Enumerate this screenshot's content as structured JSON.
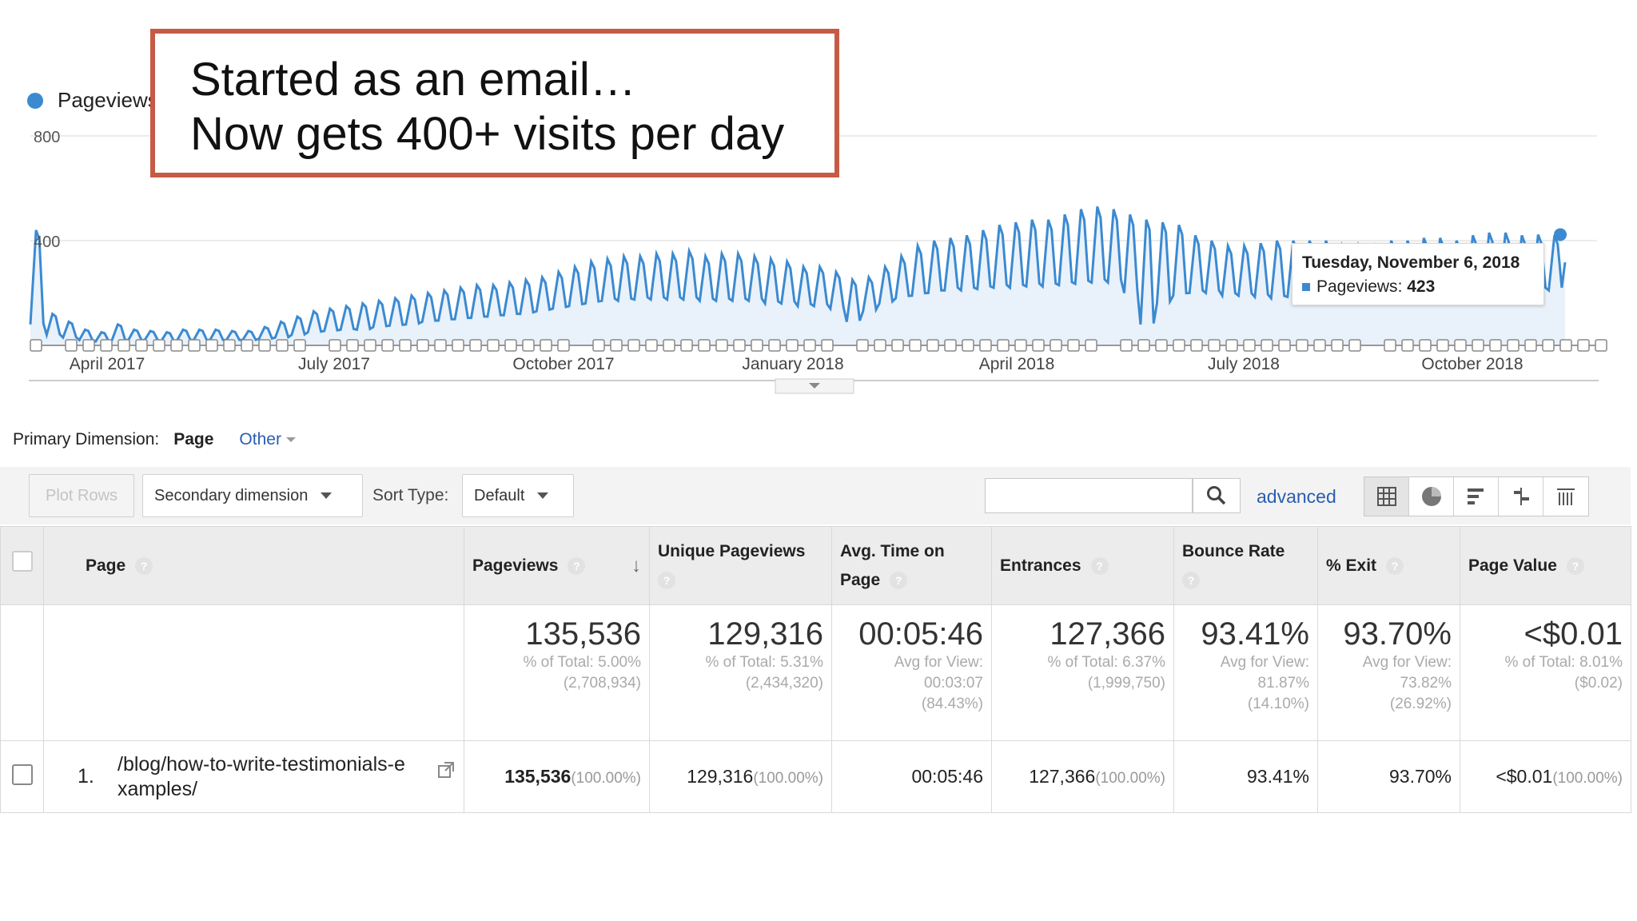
{
  "callout": {
    "line1": "Started as an email…",
    "line2": "Now gets 400+ visits per day"
  },
  "chart_data": {
    "type": "line",
    "series_name": "Pageviews",
    "y_ticks": [
      "800",
      "400"
    ],
    "ylim": [
      0,
      800
    ],
    "x_tick_labels": [
      "April 2017",
      "July 2017",
      "October 2017",
      "January 2018",
      "April 2018",
      "July 2018",
      "October 2018"
    ],
    "weekly_peaks": [
      440,
      120,
      90,
      60,
      50,
      80,
      60,
      55,
      50,
      60,
      60,
      60,
      55,
      55,
      70,
      90,
      110,
      130,
      140,
      150,
      160,
      170,
      180,
      190,
      200,
      210,
      220,
      230,
      230,
      240,
      250,
      260,
      280,
      300,
      320,
      330,
      340,
      340,
      350,
      350,
      360,
      340,
      350,
      350,
      340,
      330,
      320,
      300,
      300,
      280,
      250,
      260,
      300,
      340,
      380,
      400,
      410,
      420,
      440,
      460,
      470,
      480,
      480,
      500,
      520,
      530,
      520,
      500,
      480,
      470,
      460,
      420,
      400,
      380,
      380,
      390,
      400,
      400,
      400,
      400,
      380,
      380,
      390,
      400,
      400,
      410,
      410,
      400,
      420,
      430,
      430,
      420,
      423,
      420
    ],
    "weekly_troughs": [
      80,
      40,
      30,
      20,
      15,
      20,
      20,
      20,
      15,
      20,
      20,
      20,
      20,
      20,
      25,
      30,
      40,
      50,
      55,
      60,
      60,
      70,
      75,
      80,
      90,
      95,
      100,
      105,
      110,
      115,
      120,
      130,
      140,
      150,
      160,
      170,
      170,
      175,
      175,
      175,
      175,
      170,
      170,
      170,
      170,
      160,
      160,
      150,
      150,
      140,
      90,
      130,
      160,
      180,
      190,
      200,
      210,
      210,
      215,
      220,
      220,
      225,
      225,
      230,
      235,
      240,
      240,
      200,
      80,
      160,
      190,
      200,
      200,
      190,
      190,
      185,
      180,
      185,
      190,
      195,
      195,
      190,
      195,
      200,
      200,
      200,
      200,
      200,
      205,
      210,
      210,
      205,
      210,
      210
    ],
    "tooltip": {
      "date": "Tuesday, November 6, 2018",
      "label": "Pageviews",
      "value": "423"
    }
  },
  "primary_dimension": {
    "label": "Primary Dimension:",
    "current": "Page",
    "other": "Other"
  },
  "toolbar": {
    "plot_rows": "Plot Rows",
    "secondary_dimension": "Secondary dimension",
    "sort_type_label": "Sort Type:",
    "sort_type_value": "Default",
    "search_value": "",
    "advanced": "advanced"
  },
  "table": {
    "headers": {
      "page": "Page",
      "pageviews": "Pageviews",
      "unique_pageviews": "Unique Pageviews",
      "avg_time": "Avg. Time on Page",
      "entrances": "Entrances",
      "bounce_rate": "Bounce Rate",
      "exit": "% Exit",
      "page_value": "Page Value"
    },
    "totals": {
      "pageviews": {
        "value": "135,536",
        "sub1": "% of Total: 5.00%",
        "sub2": "(2,708,934)"
      },
      "unique_pageviews": {
        "value": "129,316",
        "sub1": "% of Total: 5.31%",
        "sub2": "(2,434,320)"
      },
      "avg_time": {
        "value": "00:05:46",
        "sub1": "Avg for View:",
        "sub2": "00:03:07",
        "sub3": "(84.43%)"
      },
      "entrances": {
        "value": "127,366",
        "sub1": "% of Total: 6.37%",
        "sub2": "(1,999,750)"
      },
      "bounce_rate": {
        "value": "93.41%",
        "sub1": "Avg for View:",
        "sub2": "81.87%",
        "sub3": "(14.10%)"
      },
      "exit": {
        "value": "93.70%",
        "sub1": "Avg for View:",
        "sub2": "73.82%",
        "sub3": "(26.92%)"
      },
      "page_value": {
        "value": "<$0.01",
        "sub1": "% of Total: 8.01%",
        "sub2": "($0.02)"
      }
    },
    "rows": [
      {
        "index": "1.",
        "page_line1": "/blog/how-to-write-testimonials-e",
        "page_line2": "xamples/",
        "pageviews": "135,536",
        "pageviews_pct": "(100.00%)",
        "unique_pageviews": "129,316",
        "unique_pageviews_pct": "(100.00%)",
        "avg_time": "00:05:46",
        "entrances": "127,366",
        "entrances_pct": "(100.00%)",
        "bounce_rate": "93.41%",
        "exit": "93.70%",
        "page_value": "<$0.01",
        "page_value_pct": "(100.00%)"
      }
    ]
  }
}
